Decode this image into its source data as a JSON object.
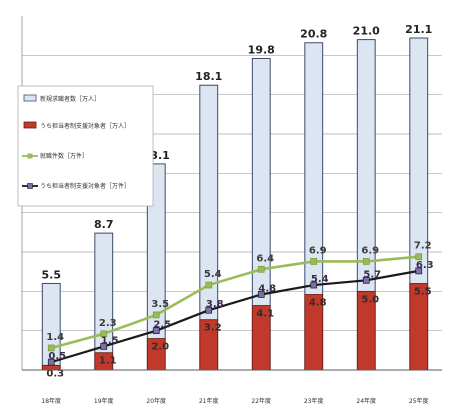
{
  "chart_data": {
    "type": "bar",
    "categories": [
      "18年度",
      "19年度",
      "20年度",
      "21年度",
      "22年度",
      "23年度",
      "24年度",
      "25年度"
    ],
    "ylim": [
      0,
      22.5
    ],
    "grid": true,
    "series": [
      {
        "name": "新規求職者数［万人］",
        "kind": "bar",
        "color": "#dce6f2",
        "edge": "#3b4a6b",
        "values": [
          5.5,
          8.7,
          13.1,
          18.1,
          19.8,
          20.8,
          21.0,
          21.1
        ],
        "labels": [
          "5.5",
          "8.7",
          "13.1",
          "18.1",
          "19.8",
          "20.8",
          "21.0",
          "21.1"
        ]
      },
      {
        "name": "うち担当者制支援対象者［万人］",
        "kind": "bar",
        "color": "#c0392b",
        "edge": "#6b1a12",
        "values": [
          0.3,
          1.1,
          2.0,
          3.2,
          4.1,
          4.8,
          5.0,
          5.5
        ],
        "labels": [
          "0.3",
          "1.1",
          "2.0",
          "3.2",
          "4.1",
          "4.8",
          "5.0",
          "5.5"
        ]
      },
      {
        "name": "就職件数［万件］",
        "kind": "line",
        "color": "#9bbb59",
        "values": [
          1.4,
          2.3,
          3.5,
          5.4,
          6.4,
          6.9,
          6.9,
          7.2
        ],
        "labels": [
          "1.4",
          "2.3",
          "3.5",
          "5.4",
          "6.4",
          "6.9",
          "6.9",
          "7.2"
        ]
      },
      {
        "name": "うち担当者制支援対象者［万件］",
        "kind": "line",
        "color": "#1a1a1a",
        "marker_color": "#7b6fb0",
        "values": [
          0.5,
          1.5,
          2.5,
          3.8,
          4.8,
          5.4,
          5.7,
          6.3
        ],
        "labels": [
          "0.5",
          "1.5",
          "2.5",
          "3.8",
          "4.8",
          "5.4",
          "5.7",
          "6.3"
        ]
      }
    ],
    "legend": "left"
  }
}
